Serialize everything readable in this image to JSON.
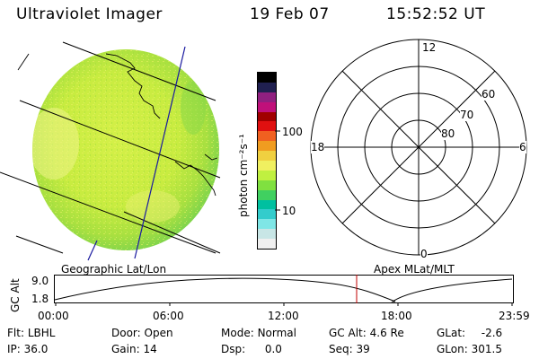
{
  "header": {
    "title": "Ultraviolet Imager",
    "date": "19 Feb 07",
    "time": "15:52:52 UT"
  },
  "colorbar": {
    "unit_label": "photon cm⁻²s⁻¹",
    "tick_100": "100",
    "tick_10": "10",
    "colors": [
      "#f0f0f0",
      "#c8e6e6",
      "#7fe6e6",
      "#33cccc",
      "#00c0a0",
      "#40d060",
      "#80e040",
      "#c0f040",
      "#f0f060",
      "#f0d040",
      "#f09c20",
      "#f06020",
      "#e01010",
      "#a00000",
      "#c0107a",
      "#902080",
      "#202050",
      "#000000"
    ]
  },
  "polar": {
    "label_12": "12",
    "label_6": "6",
    "label_18": "18",
    "label_0": "0",
    "label_60": "60",
    "label_70": "70",
    "label_80": "80"
  },
  "altitude_plot": {
    "left_label": "Geographic Lat/Lon",
    "right_label": "Apex MLat/MLT",
    "axis_label": "GC Alt",
    "y_max": "9.0",
    "y_min": "1.8",
    "ticks": [
      "00:00",
      "06:00",
      "12:00",
      "18:00",
      "23:59"
    ],
    "marker_color": "#c00000"
  },
  "info": {
    "flt_label": "Flt:",
    "flt_value": "LBHL",
    "door_label": "Door:",
    "door_value": "Open",
    "mode_label": "Mode:",
    "mode_value": "Normal",
    "gcalt_label": "GC Alt:",
    "gcalt_value": "4.6 Re",
    "glat_label": "GLat:",
    "glat_value": "-2.6",
    "ip_label": "IP:",
    "ip_value": "36.0",
    "gain_label": "Gain:",
    "gain_value": "14",
    "dsp_label": "Dsp:",
    "dsp_value": "0.0",
    "seq_label": "Seq:",
    "seq_value": "39",
    "glon_label": "GLon:",
    "glon_value": "301.5"
  }
}
